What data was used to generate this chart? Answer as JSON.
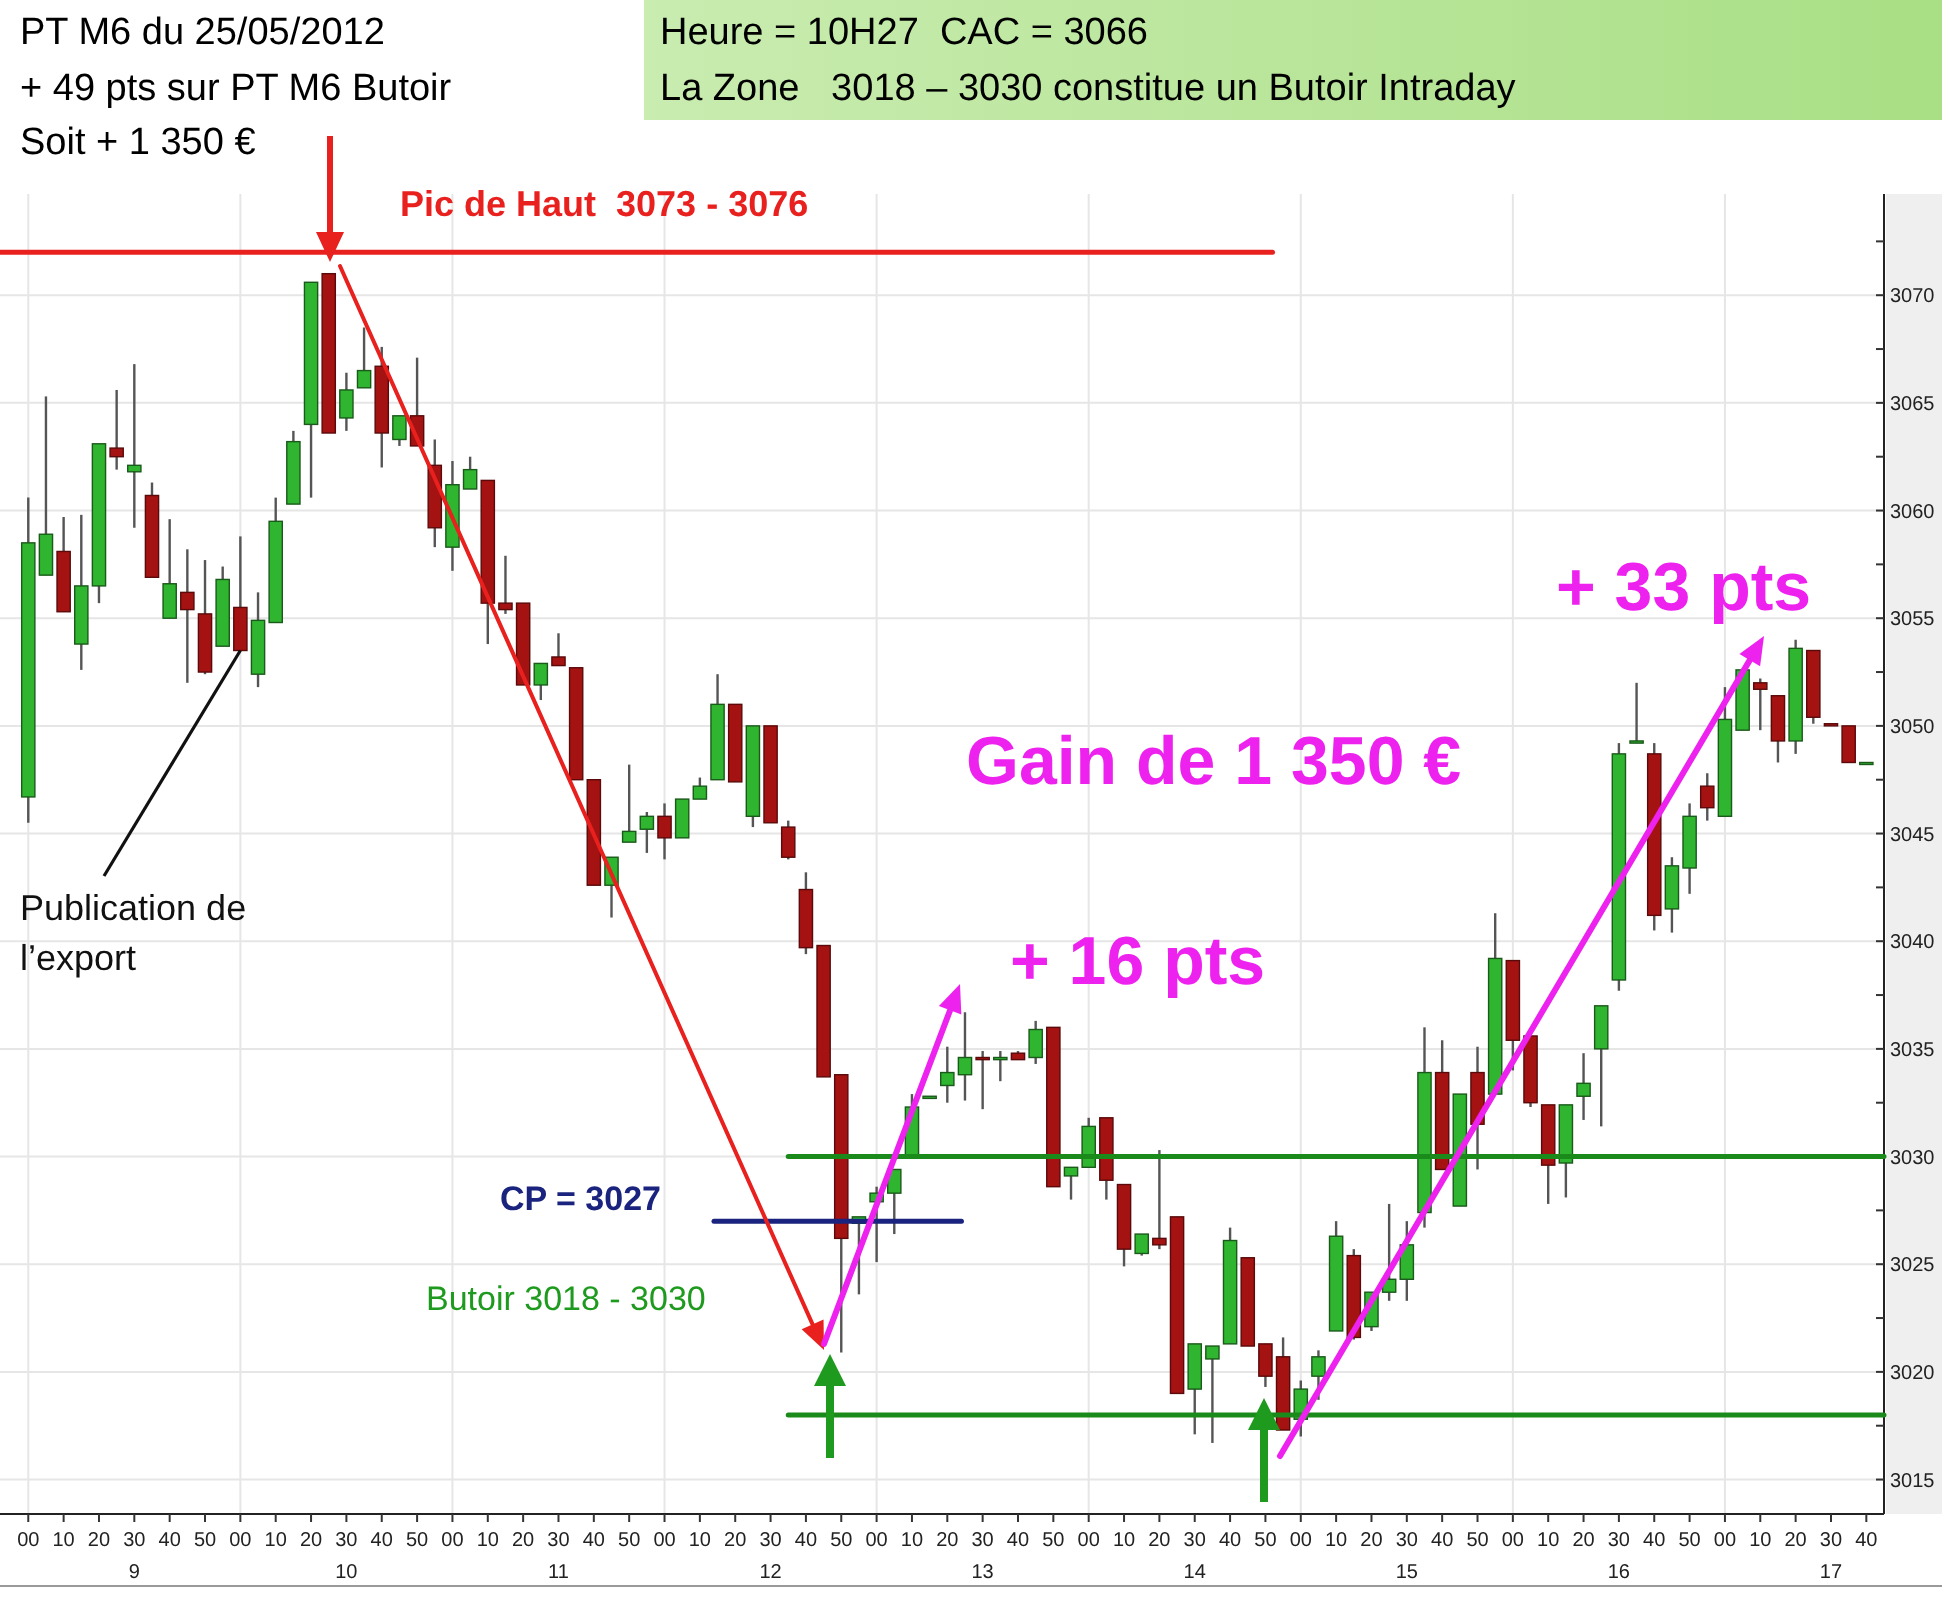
{
  "chart_data": {
    "type": "candlestick",
    "title": "PT M6 du 25/05/2012",
    "subtitle": "+ 49 pts sur PT M6 Butoir",
    "annotations": [
      "Soit + 1 350 €",
      "Heure = 10H27  CAC = 3066",
      "La Zone   3018 – 3030 constitue un Butoir Intraday",
      "Pic de Haut  3073 - 3076",
      "CP = 3027",
      "Butoir 3018 - 3030",
      "+ 16 pts",
      "Gain de 1 350 €",
      "+ 33 pts",
      {
        "text": "Publication de l’export",
        "x": "2012-05-25T10:00",
        "y": 3053.5
      }
    ],
    "xlim": [
      "2012-05-25T08:52",
      "2012-05-25T17:45"
    ],
    "ylim": [
      3013.4,
      3074.7
    ],
    "grid": true,
    "xticks": [
      {
        "value": "2012-05-25T09:00",
        "label": "00"
      },
      {
        "value": "2012-05-25T09:10",
        "label": "10"
      },
      {
        "value": "2012-05-25T09:20",
        "label": "20"
      },
      {
        "value": "2012-05-25T09:30",
        "label": "30\n9"
      },
      {
        "value": "2012-05-25T09:40",
        "label": "40"
      },
      {
        "value": "2012-05-25T09:50",
        "label": "50"
      },
      {
        "value": "2012-05-25T10:00",
        "label": "00"
      },
      {
        "value": "2012-05-25T10:10",
        "label": "10"
      },
      {
        "value": "2012-05-25T10:20",
        "label": "20"
      },
      {
        "value": "2012-05-25T10:30",
        "label": "30\n10"
      },
      {
        "value": "2012-05-25T10:40",
        "label": "40"
      },
      {
        "value": "2012-05-25T10:50",
        "label": "50"
      },
      {
        "value": "2012-05-25T11:00",
        "label": "00"
      },
      {
        "value": "2012-05-25T11:10",
        "label": "10"
      },
      {
        "value": "2012-05-25T11:20",
        "label": "20"
      },
      {
        "value": "2012-05-25T11:30",
        "label": "30\n11"
      },
      {
        "value": "2012-05-25T11:40",
        "label": "40"
      },
      {
        "value": "2012-05-25T11:50",
        "label": "50"
      },
      {
        "value": "2012-05-25T12:00",
        "label": "00"
      },
      {
        "value": "2012-05-25T12:10",
        "label": "10"
      },
      {
        "value": "2012-05-25T12:20",
        "label": "20"
      },
      {
        "value": "2012-05-25T12:30",
        "label": "30\n12"
      },
      {
        "value": "2012-05-25T12:40",
        "label": "40"
      },
      {
        "value": "2012-05-25T12:50",
        "label": "50"
      },
      {
        "value": "2012-05-25T13:00",
        "label": "00"
      },
      {
        "value": "2012-05-25T13:10",
        "label": "10"
      },
      {
        "value": "2012-05-25T13:20",
        "label": "20"
      },
      {
        "value": "2012-05-25T13:30",
        "label": "30\n13"
      },
      {
        "value": "2012-05-25T13:40",
        "label": "40"
      },
      {
        "value": "2012-05-25T13:50",
        "label": "50"
      },
      {
        "value": "2012-05-25T14:00",
        "label": "00"
      },
      {
        "value": "2012-05-25T14:10",
        "label": "10"
      },
      {
        "value": "2012-05-25T14:20",
        "label": "20"
      },
      {
        "value": "2012-05-25T14:30",
        "label": "30\n14"
      },
      {
        "value": "2012-05-25T14:40",
        "label": "40"
      },
      {
        "value": "2012-05-25T14:50",
        "label": "50"
      },
      {
        "value": "2012-05-25T15:00",
        "label": "00"
      },
      {
        "value": "2012-05-25T15:10",
        "label": "10"
      },
      {
        "value": "2012-05-25T15:20",
        "label": "20"
      },
      {
        "value": "2012-05-25T15:30",
        "label": "30\n15"
      },
      {
        "value": "2012-05-25T15:40",
        "label": "40"
      },
      {
        "value": "2012-05-25T15:50",
        "label": "50"
      },
      {
        "value": "2012-05-25T16:00",
        "label": "00"
      },
      {
        "value": "2012-05-25T16:10",
        "label": "10"
      },
      {
        "value": "2012-05-25T16:20",
        "label": "20"
      },
      {
        "value": "2012-05-25T16:30",
        "label": "30\n16"
      },
      {
        "value": "2012-05-25T16:40",
        "label": "40"
      },
      {
        "value": "2012-05-25T16:50",
        "label": "50"
      },
      {
        "value": "2012-05-25T17:00",
        "label": "00"
      },
      {
        "value": "2012-05-25T17:10",
        "label": "10"
      },
      {
        "value": "2012-05-25T17:20",
        "label": "20"
      },
      {
        "value": "2012-05-25T17:30",
        "label": "30\n17"
      },
      {
        "value": "2012-05-25T17:40",
        "label": "40"
      }
    ],
    "yticks": [
      3015,
      {
        "value": 3017.5,
        "label": null
      },
      3020,
      {
        "value": 3022.5,
        "label": null
      },
      3025,
      {
        "value": 3027.5,
        "label": null
      },
      3030,
      {
        "value": 3032.5,
        "label": null
      },
      3035,
      {
        "value": 3037.5,
        "label": null
      },
      3040,
      {
        "value": 3042.5,
        "label": null
      },
      3045,
      {
        "value": 3047.5,
        "label": null
      },
      3050,
      {
        "value": 3052.5,
        "label": null
      },
      3055,
      {
        "value": 3057.5,
        "label": null
      },
      3060,
      {
        "value": 3062.5,
        "label": null
      },
      3065,
      {
        "value": 3067.5,
        "label": null
      },
      3070,
      {
        "value": 3072.5,
        "label": null
      }
    ],
    "x": [
      "2012-05-25T09:00",
      "2012-05-25T09:05",
      "2012-05-25T09:10",
      "2012-05-25T09:15",
      "2012-05-25T09:20",
      "2012-05-25T09:25",
      "2012-05-25T09:30",
      "2012-05-25T09:35",
      "2012-05-25T09:40",
      "2012-05-25T09:45",
      "2012-05-25T09:50",
      "2012-05-25T09:55",
      "2012-05-25T10:00",
      "2012-05-25T10:05",
      "2012-05-25T10:10",
      "2012-05-25T10:15",
      "2012-05-25T10:20",
      "2012-05-25T10:25",
      "2012-05-25T10:30",
      "2012-05-25T10:35",
      "2012-05-25T10:40",
      "2012-05-25T10:45",
      "2012-05-25T10:50",
      "2012-05-25T10:55",
      "2012-05-25T11:00",
      "2012-05-25T11:05",
      "2012-05-25T11:10",
      "2012-05-25T11:15",
      "2012-05-25T11:20",
      "2012-05-25T11:25",
      "2012-05-25T11:30",
      "2012-05-25T11:35",
      "2012-05-25T11:40",
      "2012-05-25T11:45",
      "2012-05-25T11:50",
      "2012-05-25T11:55",
      "2012-05-25T12:00",
      "2012-05-25T12:05",
      "2012-05-25T12:10",
      "2012-05-25T12:15",
      "2012-05-25T12:20",
      "2012-05-25T12:25",
      "2012-05-25T12:30",
      "2012-05-25T12:35",
      "2012-05-25T12:40",
      "2012-05-25T12:45",
      "2012-05-25T12:50",
      "2012-05-25T12:55",
      "2012-05-25T13:00",
      "2012-05-25T13:05",
      "2012-05-25T13:10",
      "2012-05-25T13:15",
      "2012-05-25T13:20",
      "2012-05-25T13:25",
      "2012-05-25T13:30",
      "2012-05-25T13:35",
      "2012-05-25T13:40",
      "2012-05-25T13:45",
      "2012-05-25T13:50",
      "2012-05-25T13:55",
      "2012-05-25T14:00",
      "2012-05-25T14:05",
      "2012-05-25T14:10",
      "2012-05-25T14:15",
      "2012-05-25T14:20",
      "2012-05-25T14:25",
      "2012-05-25T14:30",
      "2012-05-25T14:35",
      "2012-05-25T14:40",
      "2012-05-25T14:45",
      "2012-05-25T14:50",
      "2012-05-25T14:55",
      "2012-05-25T15:00",
      "2012-05-25T15:05",
      "2012-05-25T15:10",
      "2012-05-25T15:15",
      "2012-05-25T15:20",
      "2012-05-25T15:25",
      "2012-05-25T15:30",
      "2012-05-25T15:35",
      "2012-05-25T15:40",
      "2012-05-25T15:45",
      "2012-05-25T15:50",
      "2012-05-25T15:55",
      "2012-05-25T16:00",
      "2012-05-25T16:05",
      "2012-05-25T16:10",
      "2012-05-25T16:15",
      "2012-05-25T16:20",
      "2012-05-25T16:25",
      "2012-05-25T16:30",
      "2012-05-25T16:35",
      "2012-05-25T16:40",
      "2012-05-25T16:45",
      "2012-05-25T16:50",
      "2012-05-25T16:55",
      "2012-05-25T17:00",
      "2012-05-25T17:05",
      "2012-05-25T17:10",
      "2012-05-25T17:15",
      "2012-05-25T17:20",
      "2012-05-25T17:25",
      "2012-05-25T17:30",
      "2012-05-25T17:35",
      "2012-05-25T17:40"
    ],
    "ohlc": [
      [
        3046.7,
        3060.6,
        3045.5,
        3058.5
      ],
      [
        3057.0,
        3065.3,
        3057.0,
        3058.9
      ],
      [
        3058.1,
        3059.7,
        3055.3,
        3055.3
      ],
      [
        3053.8,
        3059.8,
        3052.6,
        3056.5
      ],
      [
        3056.5,
        3063.1,
        3055.7,
        3063.1
      ],
      [
        3062.9,
        3065.6,
        3061.9,
        3062.5
      ],
      [
        3061.8,
        3066.8,
        3059.2,
        3062.1
      ],
      [
        3060.7,
        3061.3,
        3056.9,
        3056.9
      ],
      [
        3055.0,
        3059.6,
        3055.0,
        3056.6
      ],
      [
        3056.2,
        3058.2,
        3052.0,
        3055.4
      ],
      [
        3055.2,
        3057.7,
        3052.4,
        3052.5
      ],
      [
        3053.7,
        3057.4,
        3053.7,
        3056.8
      ],
      [
        3055.5,
        3058.8,
        3053.5,
        3053.5
      ],
      [
        3052.4,
        3056.2,
        3051.8,
        3054.9
      ],
      [
        3054.8,
        3060.6,
        3054.8,
        3059.5
      ],
      [
        3060.3,
        3063.7,
        3060.3,
        3063.2
      ],
      [
        3064.0,
        3070.6,
        3060.6,
        3070.6
      ],
      [
        3071.0,
        3071.0,
        3063.6,
        3063.6
      ],
      [
        3064.3,
        3066.4,
        3063.7,
        3065.6
      ],
      [
        3065.7,
        3068.5,
        3065.7,
        3066.5
      ],
      [
        3066.7,
        3067.6,
        3062.0,
        3063.6
      ],
      [
        3063.3,
        3064.4,
        3063.0,
        3064.4
      ],
      [
        3064.4,
        3067.1,
        3063.0,
        3063.0
      ],
      [
        3062.1,
        3063.3,
        3058.3,
        3059.2
      ],
      [
        3058.3,
        3062.3,
        3057.2,
        3061.2
      ],
      [
        3061.0,
        3062.5,
        3061.0,
        3061.9
      ],
      [
        3061.4,
        3061.4,
        3053.8,
        3055.7
      ],
      [
        3055.7,
        3057.9,
        3055.2,
        3055.4
      ],
      [
        3055.7,
        3055.7,
        3051.9,
        3051.9
      ],
      [
        3051.9,
        3052.9,
        3051.2,
        3052.9
      ],
      [
        3053.2,
        3054.3,
        3052.8,
        3052.8
      ],
      [
        3052.7,
        3052.7,
        3047.5,
        3047.5
      ],
      [
        3047.5,
        3047.5,
        3042.6,
        3042.6
      ],
      [
        3042.6,
        3043.9,
        3041.1,
        3043.9
      ],
      [
        3044.6,
        3048.2,
        3044.6,
        3045.1
      ],
      [
        3045.2,
        3046.0,
        3044.1,
        3045.8
      ],
      [
        3045.8,
        3046.4,
        3043.8,
        3044.8
      ],
      [
        3044.8,
        3046.6,
        3044.8,
        3046.6
      ],
      [
        3046.6,
        3047.6,
        3046.6,
        3047.2
      ],
      [
        3047.5,
        3052.4,
        3047.5,
        3051.0
      ],
      [
        3051.0,
        3051.0,
        3047.4,
        3047.4
      ],
      [
        3045.8,
        3050.0,
        3045.3,
        3050.0
      ],
      [
        3050.0,
        3050.0,
        3045.5,
        3045.5
      ],
      [
        3045.3,
        3045.6,
        3043.8,
        3043.9
      ],
      [
        3042.4,
        3043.2,
        3039.4,
        3039.7
      ],
      [
        3039.8,
        3039.8,
        3033.7,
        3033.7
      ],
      [
        3033.8,
        3033.8,
        3020.9,
        3026.2
      ],
      [
        3026.9,
        3027.2,
        3023.6,
        3027.2
      ],
      [
        3027.9,
        3028.6,
        3025.1,
        3028.3
      ],
      [
        3028.3,
        3029.4,
        3026.4,
        3029.4
      ],
      [
        3030.0,
        3032.9,
        3030.0,
        3032.3
      ],
      [
        3032.7,
        3032.8,
        3032.7,
        3032.8
      ],
      [
        3033.3,
        3035.1,
        3032.5,
        3033.9
      ],
      [
        3033.8,
        3036.7,
        3032.6,
        3034.6
      ],
      [
        3034.6,
        3034.9,
        3032.2,
        3034.5
      ],
      [
        3034.5,
        3034.9,
        3033.5,
        3034.6
      ],
      [
        3034.8,
        3034.9,
        3034.5,
        3034.5
      ],
      [
        3034.6,
        3036.3,
        3034.3,
        3035.9
      ],
      [
        3036.0,
        3036.0,
        3028.6,
        3028.6
      ],
      [
        3029.1,
        3029.5,
        3028.0,
        3029.5
      ],
      [
        3029.5,
        3031.8,
        3029.5,
        3031.4
      ],
      [
        3031.8,
        3031.8,
        3028.0,
        3028.9
      ],
      [
        3028.7,
        3028.7,
        3024.9,
        3025.7
      ],
      [
        3025.5,
        3026.4,
        3025.4,
        3026.4
      ],
      [
        3026.2,
        3030.3,
        3025.7,
        3025.9
      ],
      [
        3027.2,
        3027.2,
        3019.0,
        3019.0
      ],
      [
        3019.2,
        3021.3,
        3017.1,
        3021.3
      ],
      [
        3020.6,
        3021.2,
        3016.7,
        3021.2
      ],
      [
        3021.3,
        3026.7,
        3021.3,
        3026.1
      ],
      [
        3025.3,
        3025.3,
        3021.2,
        3021.2
      ],
      [
        3021.3,
        3021.3,
        3019.3,
        3019.8
      ],
      [
        3020.7,
        3021.6,
        3017.3,
        3017.3
      ],
      [
        3017.8,
        3019.6,
        3017.0,
        3019.2
      ],
      [
        3019.8,
        3021.0,
        3018.7,
        3020.7
      ],
      [
        3021.9,
        3027.0,
        3021.9,
        3026.3
      ],
      [
        3025.4,
        3025.7,
        3021.5,
        3021.6
      ],
      [
        3022.1,
        3023.7,
        3021.9,
        3023.7
      ],
      [
        3023.7,
        3027.8,
        3023.3,
        3024.3
      ],
      [
        3024.3,
        3027.0,
        3023.3,
        3025.9
      ],
      [
        3027.4,
        3036.0,
        3026.7,
        3033.9
      ],
      [
        3033.9,
        3035.4,
        3029.4,
        3029.4
      ],
      [
        3027.7,
        3032.9,
        3027.7,
        3032.9
      ],
      [
        3033.9,
        3035.1,
        3029.4,
        3031.5
      ],
      [
        3032.9,
        3041.3,
        3032.9,
        3039.2
      ],
      [
        3039.1,
        3039.1,
        3034.0,
        3035.4
      ],
      [
        3035.6,
        3035.6,
        3032.3,
        3032.5
      ],
      [
        3032.4,
        3032.4,
        3027.8,
        3029.6
      ],
      [
        3029.7,
        3032.4,
        3028.1,
        3032.4
      ],
      [
        3032.8,
        3034.8,
        3031.7,
        3033.4
      ],
      [
        3035.0,
        3037.0,
        3031.4,
        3037.0
      ],
      [
        3038.2,
        3049.2,
        3037.7,
        3048.7
      ],
      [
        3049.2,
        3052.0,
        3049.2,
        3049.3
      ],
      [
        3048.7,
        3049.2,
        3040.5,
        3041.2
      ],
      [
        3041.5,
        3043.9,
        3040.4,
        3043.5
      ],
      [
        3043.4,
        3046.4,
        3042.2,
        3045.8
      ],
      [
        3047.2,
        3047.8,
        3045.6,
        3046.2
      ],
      [
        3045.8,
        3051.8,
        3045.8,
        3050.3
      ],
      [
        3049.8,
        3052.6,
        3049.8,
        3052.6
      ],
      [
        3052.0,
        3052.2,
        3049.8,
        3051.7
      ],
      [
        3051.4,
        3051.4,
        3048.3,
        3049.3
      ],
      [
        3049.3,
        3054.0,
        3048.7,
        3053.6
      ],
      [
        3053.5,
        3053.5,
        3050.1,
        3050.4
      ],
      [
        3050.1,
        3050.1,
        3050.0,
        3050.0
      ],
      [
        3050.0,
        3050.0,
        3048.3,
        3048.3
      ],
      [
        3048.3,
        3048.3,
        3048.3,
        3048.3
      ]
    ],
    "series": [
      {
        "type": "line",
        "x": [
          "2012-05-25T08:52",
          "2012-05-25T14:52"
        ],
        "values": [
          3072,
          3072
        ],
        "color": "#e8201e"
      },
      {
        "type": "line",
        "x": [
          "2012-05-25T12:35",
          "2012-05-25T17:45"
        ],
        "values": [
          3030,
          3030
        ],
        "color": "#1a8a1a"
      },
      {
        "type": "line",
        "x": [
          "2012-05-25T12:35",
          "2012-05-25T17:45"
        ],
        "values": [
          3018,
          3018
        ],
        "color": "#1a8a1a"
      },
      {
        "type": "line",
        "x": [
          "2012-05-25T12:14",
          "2012-05-25T13:24"
        ],
        "values": [
          3027,
          3027
        ],
        "color": "#1a237e"
      }
    ]
  }
}
